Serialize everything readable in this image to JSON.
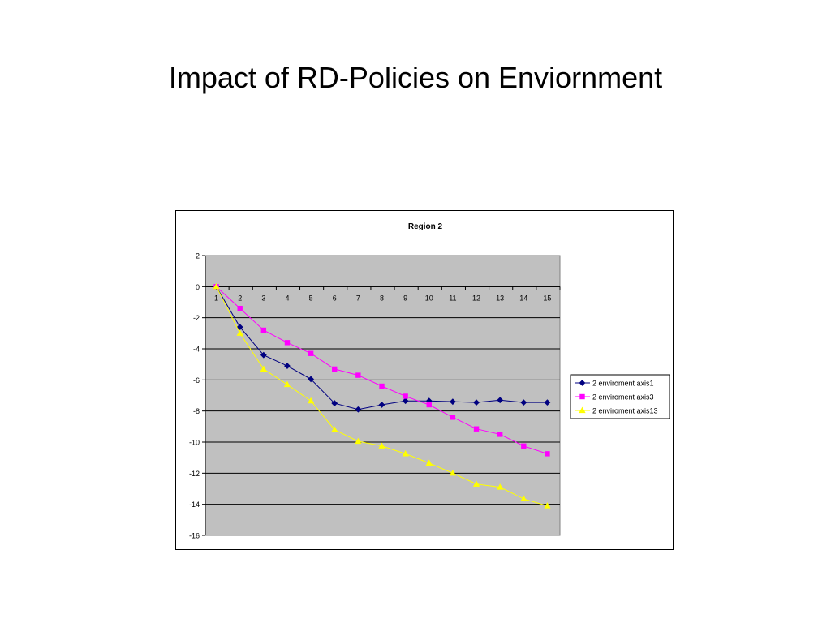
{
  "slide": {
    "title": "Impact of RD-Policies on Enviornment"
  },
  "chart_data": {
    "type": "line",
    "title": "Region 2",
    "xlabel": "",
    "ylabel": "",
    "categories": [
      "1",
      "2",
      "3",
      "4",
      "5",
      "6",
      "7",
      "8",
      "9",
      "10",
      "11",
      "12",
      "13",
      "14",
      "15"
    ],
    "ylim": [
      -16,
      2
    ],
    "yticks": [
      2,
      0,
      -2,
      -4,
      -6,
      -8,
      -10,
      -12,
      -14,
      -16
    ],
    "grid": "horizontal",
    "plot_background": "#c0c0c0",
    "legend_position": "right",
    "series": [
      {
        "name": "2 enviroment axis1",
        "color": "#000080",
        "marker": "diamond",
        "values": [
          0,
          -2.6,
          -4.4,
          -5.1,
          -5.95,
          -7.5,
          -7.9,
          -7.6,
          -7.35,
          -7.35,
          -7.4,
          -7.45,
          -7.3,
          -7.45,
          -7.45
        ]
      },
      {
        "name": "2 enviroment axis3",
        "color": "#ff00ff",
        "marker": "square",
        "values": [
          0,
          -1.4,
          -2.8,
          -3.6,
          -4.3,
          -5.3,
          -5.7,
          -6.4,
          -7.05,
          -7.6,
          -8.4,
          -9.15,
          -9.5,
          -10.25,
          -10.75
        ]
      },
      {
        "name": "2 enviroment axis13",
        "color": "#ffff00",
        "marker": "triangle",
        "values": [
          0,
          -3.0,
          -5.3,
          -6.3,
          -7.35,
          -9.2,
          -9.95,
          -10.25,
          -10.75,
          -11.35,
          -12.0,
          -12.7,
          -12.9,
          -13.65,
          -14.1
        ]
      }
    ]
  }
}
